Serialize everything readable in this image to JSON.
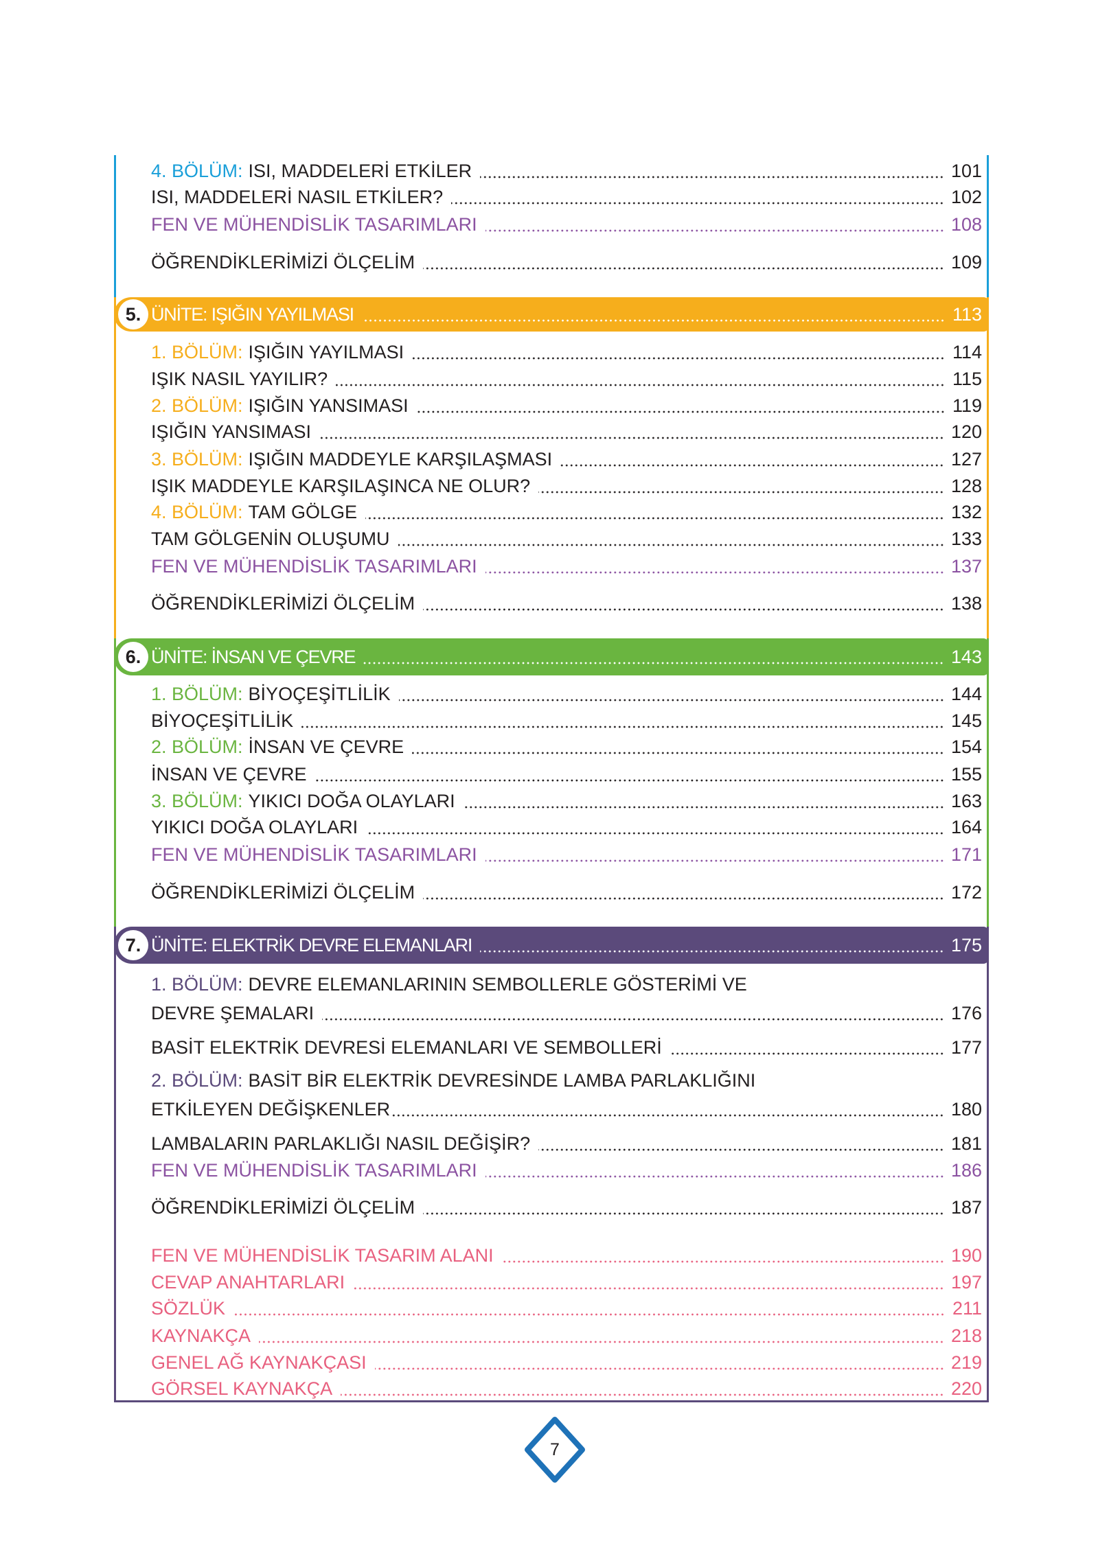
{
  "colors": {
    "blue": "#1a9fd9",
    "orange": "#f6ae1c",
    "green": "#6ab540",
    "purple": "#5b4a7b",
    "fen": "#8b52a1",
    "pink": "#e8607f",
    "page_diamond": "#1e72b8"
  },
  "unit4": {
    "entries": [
      {
        "prefix": "4. BÖLÜM:",
        "text": "ISI, MADDELERİ ETKİLER",
        "page": "101"
      },
      {
        "text": "ISI, MADDELERİ NASIL ETKİLER?",
        "page": "102"
      },
      {
        "text": "FEN VE MÜHENDİSLİK TASARIMLARI",
        "page": "108"
      },
      {
        "text": "ÖĞRENDİKLERİMİZİ ÖLÇELİM",
        "page": "109"
      }
    ]
  },
  "unit5": {
    "number": "5.",
    "title": "ÜNİTE: IŞIĞIN YAYILMASI",
    "page": "113",
    "entries": [
      {
        "prefix": "1. BÖLÜM:",
        "text": "IŞIĞIN YAYILMASI",
        "page": "114"
      },
      {
        "text": "IŞIK NASIL YAYILIR?",
        "page": "115"
      },
      {
        "prefix": "2. BÖLÜM:",
        "text": "IŞIĞIN YANSIMASI",
        "page": "119"
      },
      {
        "text": "IŞIĞIN YANSIMASI",
        "page": "120"
      },
      {
        "prefix": "3. BÖLÜM:",
        "text": "IŞIĞIN MADDEYLE KARŞILAŞMASI",
        "page": "127"
      },
      {
        "text": "IŞIK MADDEYLE KARŞILAŞINCA NE OLUR?",
        "page": "128"
      },
      {
        "prefix": "4. BÖLÜM:",
        "text": "TAM GÖLGE",
        "page": "132"
      },
      {
        "text": "TAM GÖLGENİN OLUŞUMU",
        "page": "133"
      },
      {
        "text": "FEN VE MÜHENDİSLİK TASARIMLARI",
        "page": "137"
      },
      {
        "text": "ÖĞRENDİKLERİMİZİ ÖLÇELİM",
        "page": "138"
      }
    ]
  },
  "unit6": {
    "number": "6.",
    "title": "ÜNİTE: İNSAN VE ÇEVRE",
    "page": "143",
    "entries": [
      {
        "prefix": "1. BÖLÜM:",
        "text": "BİYOÇEŞİTLİLİK",
        "page": "144"
      },
      {
        "text": "BİYOÇEŞİTLİLİK",
        "page": "145"
      },
      {
        "prefix": "2. BÖLÜM:",
        "text": "İNSAN VE ÇEVRE",
        "page": "154"
      },
      {
        "text": "İNSAN VE ÇEVRE",
        "page": "155"
      },
      {
        "prefix": "3. BÖLÜM:",
        "text": "YIKICI DOĞA OLAYLARI",
        "page": "163"
      },
      {
        "text": "YIKICI DOĞA OLAYLARI",
        "page": "164"
      },
      {
        "text": "FEN VE MÜHENDİSLİK TASARIMLARI",
        "page": "171"
      },
      {
        "text": "ÖĞRENDİKLERİMİZİ ÖLÇELİM",
        "page": "172"
      }
    ]
  },
  "unit7": {
    "number": "7.",
    "title": "ÜNİTE: ELEKTRİK DEVRE ELEMANLARI",
    "page": "175",
    "entries": [
      {
        "prefix": "1. BÖLÜM:",
        "text": "DEVRE ELEMANLARININ SEMBOLLERLE GÖSTERİMİ VE",
        "text2": "DEVRE ŞEMALARI",
        "page": "176"
      },
      {
        "text": "BASİT ELEKTRİK DEVRESİ ELEMANLARI VE SEMBOLLERİ",
        "page": "177"
      },
      {
        "prefix": "2. BÖLÜM:",
        "text": "BASİT BİR ELEKTRİK DEVRESİNDE LAMBA PARLAKLIĞINI",
        "text2": "ETKİLEYEN DEĞİŞKENLER",
        "page": "180"
      },
      {
        "text": "LAMBALARIN PARLAKLIĞI NASIL DEĞİŞİR?",
        "page": "181"
      },
      {
        "text": "FEN VE MÜHENDİSLİK TASARIMLARI",
        "page": "186"
      },
      {
        "text": "ÖĞRENDİKLERİMİZİ ÖLÇELİM",
        "page": "187"
      }
    ]
  },
  "appendix": [
    {
      "text": "FEN VE MÜHENDİSLİK TASARIM ALANI",
      "page": "190"
    },
    {
      "text": "CEVAP ANAHTARLARI",
      "page": "197"
    },
    {
      "text": "SÖZLÜK",
      "page": "211"
    },
    {
      "text": "KAYNAKÇA",
      "page": "218"
    },
    {
      "text": "GENEL AĞ KAYNAKÇASI",
      "page": "219"
    },
    {
      "text": "GÖRSEL KAYNAKÇA",
      "page": "220"
    }
  ],
  "page_number": "7"
}
